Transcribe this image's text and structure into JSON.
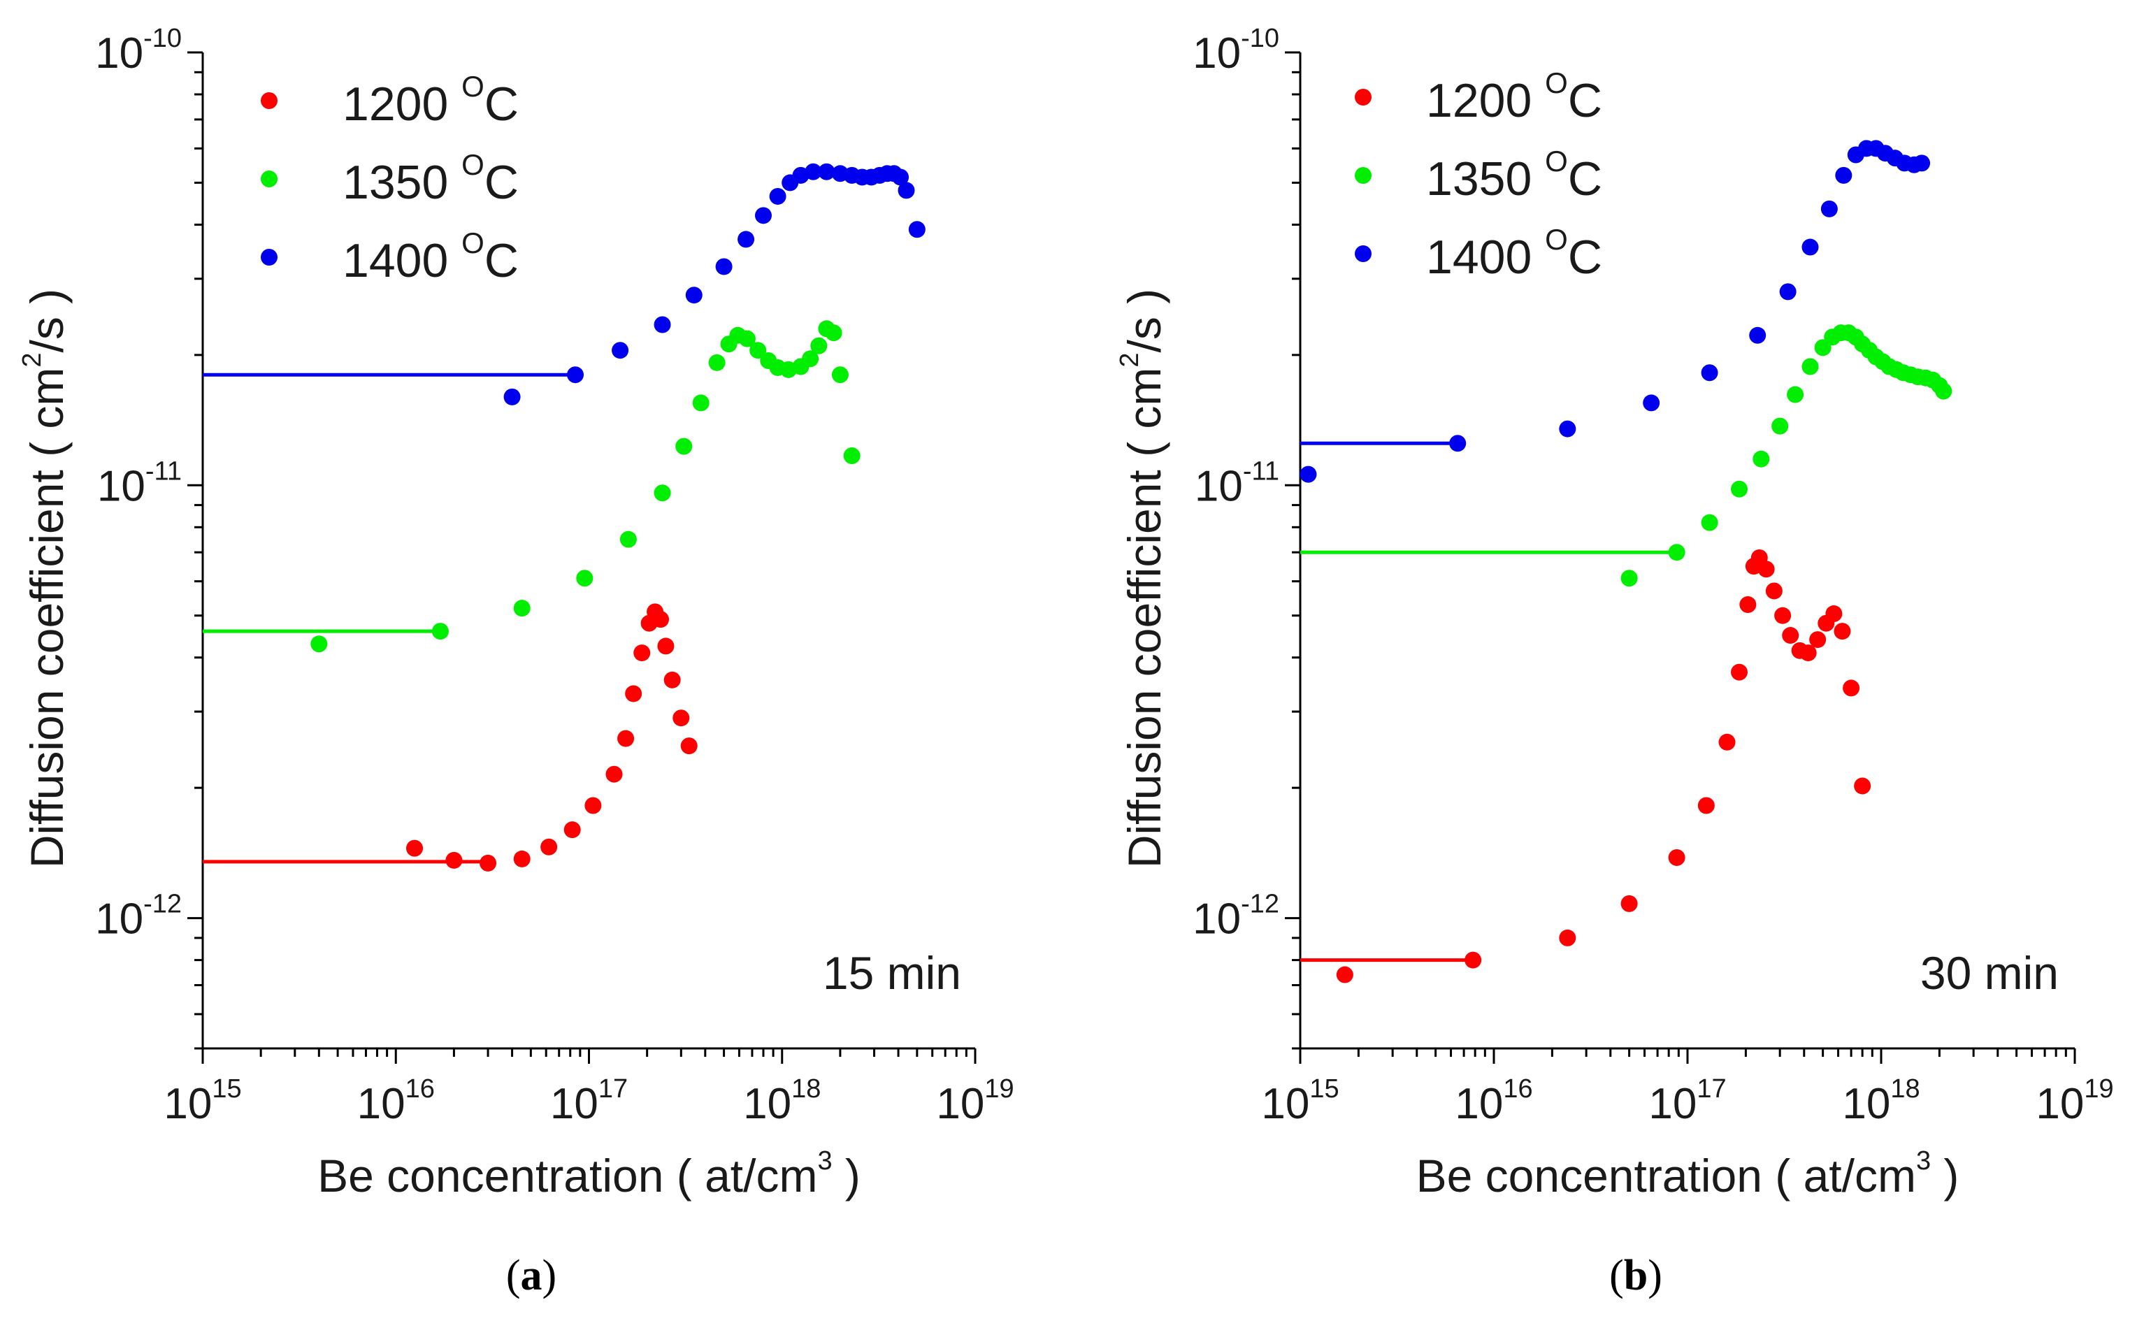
{
  "chart_data": [
    {
      "type": "scatter",
      "panel": "a",
      "panel_label_open": "(",
      "panel_label_letter": "a",
      "panel_label_close": ")",
      "annotation": "15 min",
      "xlabel": "Be concentration ( at/cm",
      "xlabel_sup": "3",
      "xlabel_tail": " )",
      "ylabel": "Diffusion coefficient ( cm",
      "ylabel_sup": "2",
      "ylabel_tail": "/s )",
      "x_scale": "log",
      "y_scale": "log",
      "xlim": [
        1000000000000000.0,
        1e+19
      ],
      "ylim": [
        5e-13,
        1e-10
      ],
      "x_ticks": [
        {
          "base": "10",
          "exp": "15",
          "value": 1000000000000000.0
        },
        {
          "base": "10",
          "exp": "16",
          "value": 1e+16
        },
        {
          "base": "10",
          "exp": "17",
          "value": 1e+17
        },
        {
          "base": "10",
          "exp": "18",
          "value": 1e+18
        },
        {
          "base": "10",
          "exp": "19",
          "value": 1e+19
        }
      ],
      "y_ticks": [
        {
          "base": "10",
          "exp": "-12",
          "value": 1e-12
        },
        {
          "base": "10",
          "exp": "-11",
          "value": 1e-11
        },
        {
          "base": "10",
          "exp": "-10",
          "value": 1e-10
        }
      ],
      "legend_position": "top-left",
      "series": [
        {
          "name": "1200",
          "unit_sup": "O",
          "unit": "C",
          "color": "#ff0000",
          "line": {
            "x0": 1000000000000000.0,
            "x1": 3e+16,
            "y": 1.35e-12
          },
          "points": [
            [
              1.25e+16,
              1.45e-12
            ],
            [
              2e+16,
              1.36e-12
            ],
            [
              3e+16,
              1.34e-12
            ],
            [
              4.5e+16,
              1.37e-12
            ],
            [
              6.2e+16,
              1.46e-12
            ],
            [
              8.2e+16,
              1.6e-12
            ],
            [
              1.05e+17,
              1.82e-12
            ],
            [
              1.35e+17,
              2.15e-12
            ],
            [
              1.55e+17,
              2.6e-12
            ],
            [
              1.7e+17,
              3.3e-12
            ],
            [
              1.88e+17,
              4.1e-12
            ],
            [
              2.05e+17,
              4.8e-12
            ],
            [
              2.2e+17,
              5.1e-12
            ],
            [
              2.35e+17,
              4.9e-12
            ],
            [
              2.5e+17,
              4.25e-12
            ],
            [
              2.7e+17,
              3.55e-12
            ],
            [
              3e+17,
              2.9e-12
            ],
            [
              3.3e+17,
              2.5e-12
            ]
          ]
        },
        {
          "name": "1350",
          "unit_sup": "O",
          "unit": "C",
          "color": "#00ee00",
          "line": {
            "x0": 1000000000000000.0,
            "x1": 1.7e+16,
            "y": 4.6e-12
          },
          "points": [
            [
              4000000000000000.0,
              4.3e-12
            ],
            [
              1.7e+16,
              4.6e-12
            ],
            [
              4.5e+16,
              5.2e-12
            ],
            [
              9.5e+16,
              6.1e-12
            ],
            [
              1.6e+17,
              7.5e-12
            ],
            [
              2.4e+17,
              9.6e-12
            ],
            [
              3.1e+17,
              1.23e-11
            ],
            [
              3.8e+17,
              1.55e-11
            ],
            [
              4.6e+17,
              1.92e-11
            ],
            [
              5.3e+17,
              2.12e-11
            ],
            [
              5.9e+17,
              2.22e-11
            ],
            [
              6.6e+17,
              2.18e-11
            ],
            [
              7.5e+17,
              2.05e-11
            ],
            [
              8.5e+17,
              1.94e-11
            ],
            [
              9.5e+17,
              1.87e-11
            ],
            [
              1.08e+18,
              1.85e-11
            ],
            [
              1.25e+18,
              1.88e-11
            ],
            [
              1.4e+18,
              1.96e-11
            ],
            [
              1.55e+18,
              2.1e-11
            ],
            [
              1.7e+18,
              2.3e-11
            ],
            [
              1.85e+18,
              2.25e-11
            ],
            [
              2e+18,
              1.8e-11
            ],
            [
              2.3e+18,
              1.17e-11
            ]
          ]
        },
        {
          "name": "1400",
          "unit_sup": "O",
          "unit": "C",
          "color": "#0000ee",
          "line": {
            "x0": 1000000000000000.0,
            "x1": 8.5e+16,
            "y": 1.8e-11
          },
          "points": [
            [
              4e+16,
              1.6e-11
            ],
            [
              8.5e+16,
              1.8e-11
            ],
            [
              1.45e+17,
              2.05e-11
            ],
            [
              2.4e+17,
              2.35e-11
            ],
            [
              3.5e+17,
              2.75e-11
            ],
            [
              5e+17,
              3.2e-11
            ],
            [
              6.5e+17,
              3.7e-11
            ],
            [
              8e+17,
              4.2e-11
            ],
            [
              9.5e+17,
              4.65e-11
            ],
            [
              1.1e+18,
              5e-11
            ],
            [
              1.25e+18,
              5.2e-11
            ],
            [
              1.45e+18,
              5.3e-11
            ],
            [
              1.7e+18,
              5.3e-11
            ],
            [
              2e+18,
              5.25e-11
            ],
            [
              2.3e+18,
              5.2e-11
            ],
            [
              2.6e+18,
              5.15e-11
            ],
            [
              2.9e+18,
              5.15e-11
            ],
            [
              3.2e+18,
              5.2e-11
            ],
            [
              3.5e+18,
              5.25e-11
            ],
            [
              3.8e+18,
              5.25e-11
            ],
            [
              4.1e+18,
              5.15e-11
            ],
            [
              4.4e+18,
              4.8e-11
            ],
            [
              5e+18,
              3.9e-11
            ]
          ]
        }
      ]
    },
    {
      "type": "scatter",
      "panel": "b",
      "panel_label_open": "(",
      "panel_label_letter": "b",
      "panel_label_close": ")",
      "annotation": "30 min",
      "xlabel": "Be concentration ( at/cm",
      "xlabel_sup": "3",
      "xlabel_tail": " )",
      "ylabel": "Diffusion coefficient ( cm",
      "ylabel_sup": "2",
      "ylabel_tail": "/s )",
      "x_scale": "log",
      "y_scale": "log",
      "xlim": [
        1000000000000000.0,
        1e+19
      ],
      "ylim": [
        5e-13,
        1e-10
      ],
      "x_ticks": [
        {
          "base": "10",
          "exp": "15",
          "value": 1000000000000000.0
        },
        {
          "base": "10",
          "exp": "16",
          "value": 1e+16
        },
        {
          "base": "10",
          "exp": "17",
          "value": 1e+17
        },
        {
          "base": "10",
          "exp": "18",
          "value": 1e+18
        },
        {
          "base": "10",
          "exp": "19",
          "value": 1e+19
        }
      ],
      "y_ticks": [
        {
          "base": "10",
          "exp": "-12",
          "value": 1e-12
        },
        {
          "base": "10",
          "exp": "-11",
          "value": 1e-11
        },
        {
          "base": "10",
          "exp": "-10",
          "value": 1e-10
        }
      ],
      "legend_position": "top-left",
      "series": [
        {
          "name": "1200",
          "unit_sup": "O",
          "unit": "C",
          "color": "#ff0000",
          "line": {
            "x0": 1000000000000000.0,
            "x1": 7800000000000000.0,
            "y": 8e-13
          },
          "points": [
            [
              1700000000000000.0,
              7.4e-13
            ],
            [
              7800000000000000.0,
              8e-13
            ],
            [
              2.4e+16,
              9e-13
            ],
            [
              5e+16,
              1.08e-12
            ],
            [
              8.8e+16,
              1.38e-12
            ],
            [
              1.25e+17,
              1.82e-12
            ],
            [
              1.6e+17,
              2.55e-12
            ],
            [
              1.85e+17,
              3.7e-12
            ],
            [
              2.05e+17,
              5.3e-12
            ],
            [
              2.2e+17,
              6.5e-12
            ],
            [
              2.35e+17,
              6.8e-12
            ],
            [
              2.55e+17,
              6.4e-12
            ],
            [
              2.8e+17,
              5.7e-12
            ],
            [
              3.1e+17,
              5e-12
            ],
            [
              3.4e+17,
              4.5e-12
            ],
            [
              3.8e+17,
              4.15e-12
            ],
            [
              4.2e+17,
              4.1e-12
            ],
            [
              4.7e+17,
              4.4e-12
            ],
            [
              5.2e+17,
              4.8e-12
            ],
            [
              5.7e+17,
              5.05e-12
            ],
            [
              6.3e+17,
              4.6e-12
            ],
            [
              7e+17,
              3.4e-12
            ],
            [
              8e+17,
              2.02e-12
            ]
          ]
        },
        {
          "name": "1350",
          "unit_sup": "O",
          "unit": "C",
          "color": "#00ee00",
          "line": {
            "x0": 1000000000000000.0,
            "x1": 8.8e+16,
            "y": 7e-12
          },
          "points": [
            [
              5e+16,
              6.1e-12
            ],
            [
              8.8e+16,
              7e-12
            ],
            [
              1.3e+17,
              8.2e-12
            ],
            [
              1.85e+17,
              9.8e-12
            ],
            [
              2.4e+17,
              1.15e-11
            ],
            [
              3e+17,
              1.37e-11
            ],
            [
              3.6e+17,
              1.62e-11
            ],
            [
              4.3e+17,
              1.88e-11
            ],
            [
              5e+17,
              2.08e-11
            ],
            [
              5.6e+17,
              2.2e-11
            ],
            [
              6.2e+17,
              2.25e-11
            ],
            [
              6.8e+17,
              2.25e-11
            ],
            [
              7.4e+17,
              2.2e-11
            ],
            [
              8e+17,
              2.12e-11
            ],
            [
              8.7e+17,
              2.05e-11
            ],
            [
              9.4e+17,
              1.98e-11
            ],
            [
              1.02e+18,
              1.93e-11
            ],
            [
              1.1e+18,
              1.88e-11
            ],
            [
              1.2e+18,
              1.85e-11
            ],
            [
              1.3e+18,
              1.82e-11
            ],
            [
              1.42e+18,
              1.8e-11
            ],
            [
              1.55e+18,
              1.78e-11
            ],
            [
              1.7e+18,
              1.77e-11
            ],
            [
              1.85e+18,
              1.75e-11
            ],
            [
              2e+18,
              1.7e-11
            ],
            [
              2.1e+18,
              1.65e-11
            ]
          ]
        },
        {
          "name": "1400",
          "unit_sup": "O",
          "unit": "C",
          "color": "#0000ee",
          "line": {
            "x0": 1000000000000000.0,
            "x1": 6500000000000000.0,
            "y": 1.25e-11
          },
          "points": [
            [
              1100000000000000.0,
              1.06e-11
            ],
            [
              6500000000000000.0,
              1.25e-11
            ],
            [
              2.4e+16,
              1.35e-11
            ],
            [
              6.5e+16,
              1.55e-11
            ],
            [
              1.3e+17,
              1.82e-11
            ],
            [
              2.3e+17,
              2.22e-11
            ],
            [
              3.3e+17,
              2.8e-11
            ],
            [
              4.3e+17,
              3.55e-11
            ],
            [
              5.4e+17,
              4.35e-11
            ],
            [
              6.4e+17,
              5.2e-11
            ],
            [
              7.4e+17,
              5.8e-11
            ],
            [
              8.4e+17,
              6e-11
            ],
            [
              9.4e+17,
              6e-11
            ],
            [
              1.05e+18,
              5.85e-11
            ],
            [
              1.18e+18,
              5.7e-11
            ],
            [
              1.32e+18,
              5.55e-11
            ],
            [
              1.48e+18,
              5.5e-11
            ],
            [
              1.62e+18,
              5.55e-11
            ]
          ]
        }
      ]
    }
  ]
}
